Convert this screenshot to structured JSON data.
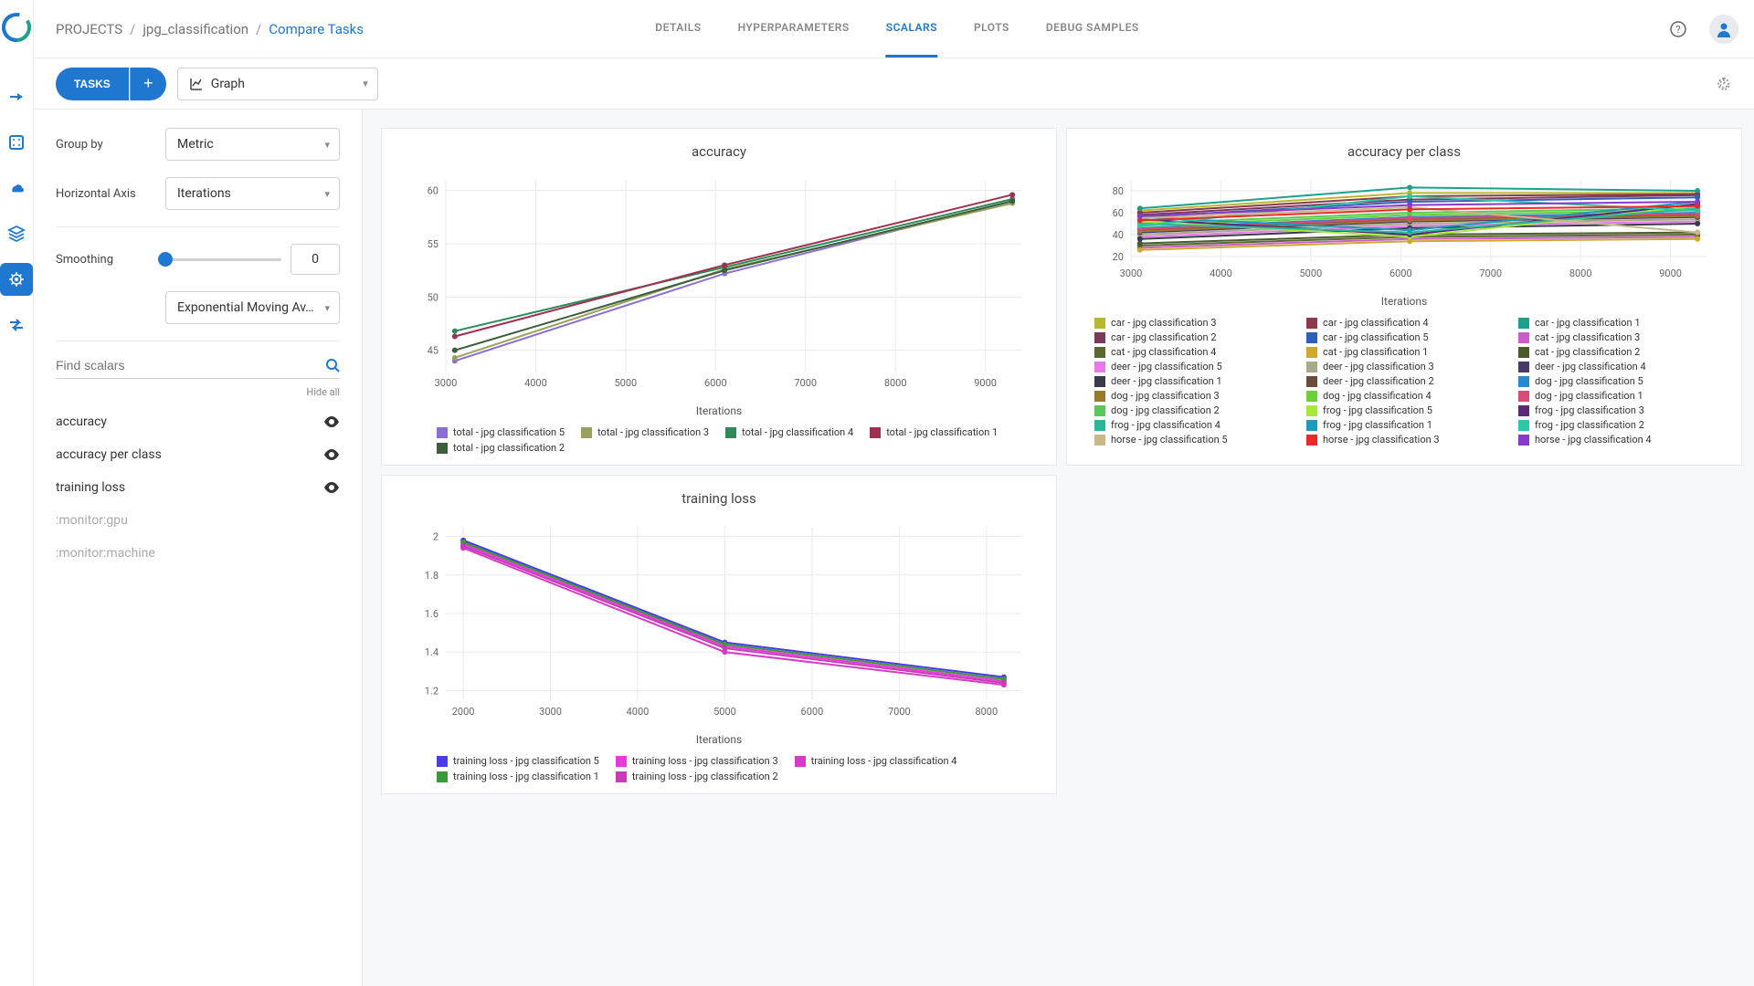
{
  "breadcrumb": {
    "root": "PROJECTS",
    "project": "jpg_classification",
    "page": "Compare Tasks"
  },
  "tabs": [
    "DETAILS",
    "HYPERPARAMETERS",
    "SCALARS",
    "PLOTS",
    "DEBUG SAMPLES"
  ],
  "active_tab": 2,
  "toolbar": {
    "tasks_btn": "TASKS",
    "view_select": "Graph"
  },
  "sidebar": {
    "group_by_label": "Group by",
    "group_by_value": "Metric",
    "haxis_label": "Horizontal Axis",
    "haxis_value": "Iterations",
    "smoothing_label": "Smoothing",
    "smoothing_value": "0",
    "smoothing_algo": "Exponential Moving Av…",
    "search_placeholder": "Find scalars",
    "hide_all": "Hide all",
    "metrics": [
      {
        "label": "accuracy",
        "visible": true
      },
      {
        "label": "accuracy per class",
        "visible": true
      },
      {
        "label": "training loss",
        "visible": true
      },
      {
        "label": ":monitor:gpu",
        "visible": false
      },
      {
        "label": ":monitor:machine",
        "visible": false
      }
    ]
  },
  "charts": {
    "accuracy": {
      "title": "accuracy",
      "xlabel": "Iterations",
      "xlim": [
        3000,
        9400
      ],
      "ylim": [
        43,
        61
      ],
      "xticks": [
        3000,
        4000,
        5000,
        6000,
        7000,
        8000,
        9000
      ],
      "yticks": [
        45,
        50,
        55,
        60
      ],
      "series": [
        {
          "name": "total - jpg classification 5",
          "color": "#8b6fd6",
          "x": [
            3100,
            6100,
            9300
          ],
          "y": [
            44.0,
            52.2,
            59.0
          ]
        },
        {
          "name": "total - jpg classification 3",
          "color": "#9aa15d",
          "x": [
            3100,
            6100,
            9300
          ],
          "y": [
            44.3,
            52.6,
            58.8
          ]
        },
        {
          "name": "total - jpg classification 4",
          "color": "#2e8b57",
          "x": [
            3100,
            6100,
            9300
          ],
          "y": [
            46.8,
            52.8,
            59.2
          ]
        },
        {
          "name": "total - jpg classification 1",
          "color": "#a03050",
          "x": [
            3100,
            6100,
            9300
          ],
          "y": [
            46.3,
            53.0,
            59.6
          ]
        },
        {
          "name": "total - jpg classification 2",
          "color": "#3b5f3b",
          "x": [
            3100,
            6100,
            9300
          ],
          "y": [
            45.0,
            52.5,
            59.0
          ]
        }
      ]
    },
    "accuracy_per_class": {
      "title": "accuracy per class",
      "xlabel": "Iterations",
      "xlim": [
        3000,
        9400
      ],
      "ylim": [
        15,
        90
      ],
      "xticks": [
        3000,
        4000,
        5000,
        6000,
        7000,
        8000,
        9000
      ],
      "yticks": [
        20,
        40,
        60,
        80
      ],
      "series": [
        {
          "name": "car - jpg classification 3",
          "color": "#b8b82e",
          "x": [
            3100,
            6100,
            9300
          ],
          "y": [
            62,
            78,
            78
          ]
        },
        {
          "name": "car - jpg classification 4",
          "color": "#8a3a4a",
          "x": [
            3100,
            6100,
            9300
          ],
          "y": [
            60,
            75,
            77
          ]
        },
        {
          "name": "car - jpg classification 1",
          "color": "#1fa08c",
          "x": [
            3100,
            6100,
            9300
          ],
          "y": [
            64,
            83,
            80
          ]
        },
        {
          "name": "car - jpg classification 2",
          "color": "#7a3a5a",
          "x": [
            3100,
            6100,
            9300
          ],
          "y": [
            58,
            72,
            76
          ]
        },
        {
          "name": "car - jpg classification 5",
          "color": "#2f5fb8",
          "x": [
            3100,
            6100,
            9300
          ],
          "y": [
            56,
            70,
            74
          ]
        },
        {
          "name": "cat - jpg classification 3",
          "color": "#c85fc8",
          "x": [
            3100,
            6100,
            9300
          ],
          "y": [
            28,
            36,
            38
          ]
        },
        {
          "name": "cat - jpg classification 4",
          "color": "#5a6a2f",
          "x": [
            3100,
            6100,
            9300
          ],
          "y": [
            30,
            38,
            40
          ]
        },
        {
          "name": "cat - jpg classification 1",
          "color": "#d0a82f",
          "x": [
            3100,
            6100,
            9300
          ],
          "y": [
            26,
            34,
            36
          ]
        },
        {
          "name": "cat - jpg classification 2",
          "color": "#4a5a2a",
          "x": [
            3100,
            6100,
            9300
          ],
          "y": [
            32,
            40,
            42
          ]
        },
        {
          "name": "deer - jpg classification 5",
          "color": "#e878e8",
          "x": [
            3100,
            6100,
            9300
          ],
          "y": [
            38,
            48,
            52
          ]
        },
        {
          "name": "deer - jpg classification 3",
          "color": "#a8a88a",
          "x": [
            3100,
            6100,
            9300
          ],
          "y": [
            40,
            50,
            54
          ]
        },
        {
          "name": "deer - jpg classification 4",
          "color": "#4a3a6a",
          "x": [
            3100,
            6100,
            9300
          ],
          "y": [
            42,
            52,
            56
          ]
        },
        {
          "name": "deer - jpg classification 1",
          "color": "#3a3a4a",
          "x": [
            3100,
            6100,
            9300
          ],
          "y": [
            36,
            46,
            50
          ]
        },
        {
          "name": "deer - jpg classification 2",
          "color": "#6a4a3a",
          "x": [
            3100,
            6100,
            9300
          ],
          "y": [
            44,
            54,
            58
          ]
        },
        {
          "name": "dog - jpg classification 5",
          "color": "#2a88d0",
          "x": [
            3100,
            6100,
            9300
          ],
          "y": [
            46,
            56,
            60
          ]
        },
        {
          "name": "dog - jpg classification 3",
          "color": "#9a7a2a",
          "x": [
            3100,
            6100,
            9300
          ],
          "y": [
            43,
            53,
            57
          ]
        },
        {
          "name": "dog - jpg classification 4",
          "color": "#6ad03a",
          "x": [
            3100,
            6100,
            9300
          ],
          "y": [
            48,
            58,
            62
          ]
        },
        {
          "name": "dog - jpg classification 1",
          "color": "#d84a7a",
          "x": [
            3100,
            6100,
            9300
          ],
          "y": [
            45,
            55,
            59
          ]
        },
        {
          "name": "dog - jpg classification 2",
          "color": "#58c858",
          "x": [
            3100,
            6100,
            9300
          ],
          "y": [
            50,
            60,
            64
          ]
        },
        {
          "name": "frog - jpg classification 5",
          "color": "#a8e83a",
          "x": [
            3100,
            6100,
            9300
          ],
          "y": [
            52,
            38,
            66
          ]
        },
        {
          "name": "frog - jpg classification 3",
          "color": "#5a2a7a",
          "x": [
            3100,
            6100,
            9300
          ],
          "y": [
            54,
            40,
            68
          ]
        },
        {
          "name": "frog - jpg classification 4",
          "color": "#2ab89a",
          "x": [
            3100,
            6100,
            9300
          ],
          "y": [
            50,
            42,
            64
          ]
        },
        {
          "name": "frog - jpg classification 1",
          "color": "#1f9ab8",
          "x": [
            3100,
            6100,
            9300
          ],
          "y": [
            56,
            44,
            70
          ]
        },
        {
          "name": "frog - jpg classification 2",
          "color": "#2ac8a8",
          "x": [
            3100,
            6100,
            9300
          ],
          "y": [
            48,
            75,
            62
          ]
        },
        {
          "name": "horse - jpg classification 5",
          "color": "#c8b888",
          "x": [
            3100,
            6100,
            9300
          ],
          "y": [
            55,
            65,
            42
          ]
        },
        {
          "name": "horse - jpg classification 3",
          "color": "#e82a2a",
          "x": [
            3100,
            6100,
            9300
          ],
          "y": [
            53,
            63,
            66
          ]
        },
        {
          "name": "horse - jpg classification 4",
          "color": "#8a3ac8",
          "x": [
            3100,
            6100,
            9300
          ],
          "y": [
            57,
            67,
            70
          ]
        }
      ]
    },
    "training_loss": {
      "title": "training loss",
      "xlabel": "Iterations",
      "xlim": [
        1800,
        8400
      ],
      "ylim": [
        1.15,
        2.05
      ],
      "xticks": [
        2000,
        3000,
        4000,
        5000,
        6000,
        7000,
        8000
      ],
      "yticks": [
        1.2,
        1.4,
        1.6,
        1.8,
        2
      ],
      "series": [
        {
          "name": "training loss - jpg classification 5",
          "color": "#4a3ae8",
          "x": [
            2000,
            5000,
            8200
          ],
          "y": [
            1.98,
            1.45,
            1.27
          ]
        },
        {
          "name": "training loss - jpg classification 3",
          "color": "#e83ad8",
          "x": [
            2000,
            5000,
            8200
          ],
          "y": [
            1.96,
            1.43,
            1.25
          ]
        },
        {
          "name": "training loss - jpg classification 4",
          "color": "#d83ac8",
          "x": [
            2000,
            5000,
            8200
          ],
          "y": [
            1.94,
            1.4,
            1.23
          ]
        },
        {
          "name": "training loss - jpg classification 1",
          "color": "#3a9a3a",
          "x": [
            2000,
            5000,
            8200
          ],
          "y": [
            1.97,
            1.44,
            1.26
          ]
        },
        {
          "name": "training loss - jpg classification 2",
          "color": "#c83ab8",
          "x": [
            2000,
            5000,
            8200
          ],
          "y": [
            1.95,
            1.42,
            1.24
          ]
        }
      ]
    }
  }
}
